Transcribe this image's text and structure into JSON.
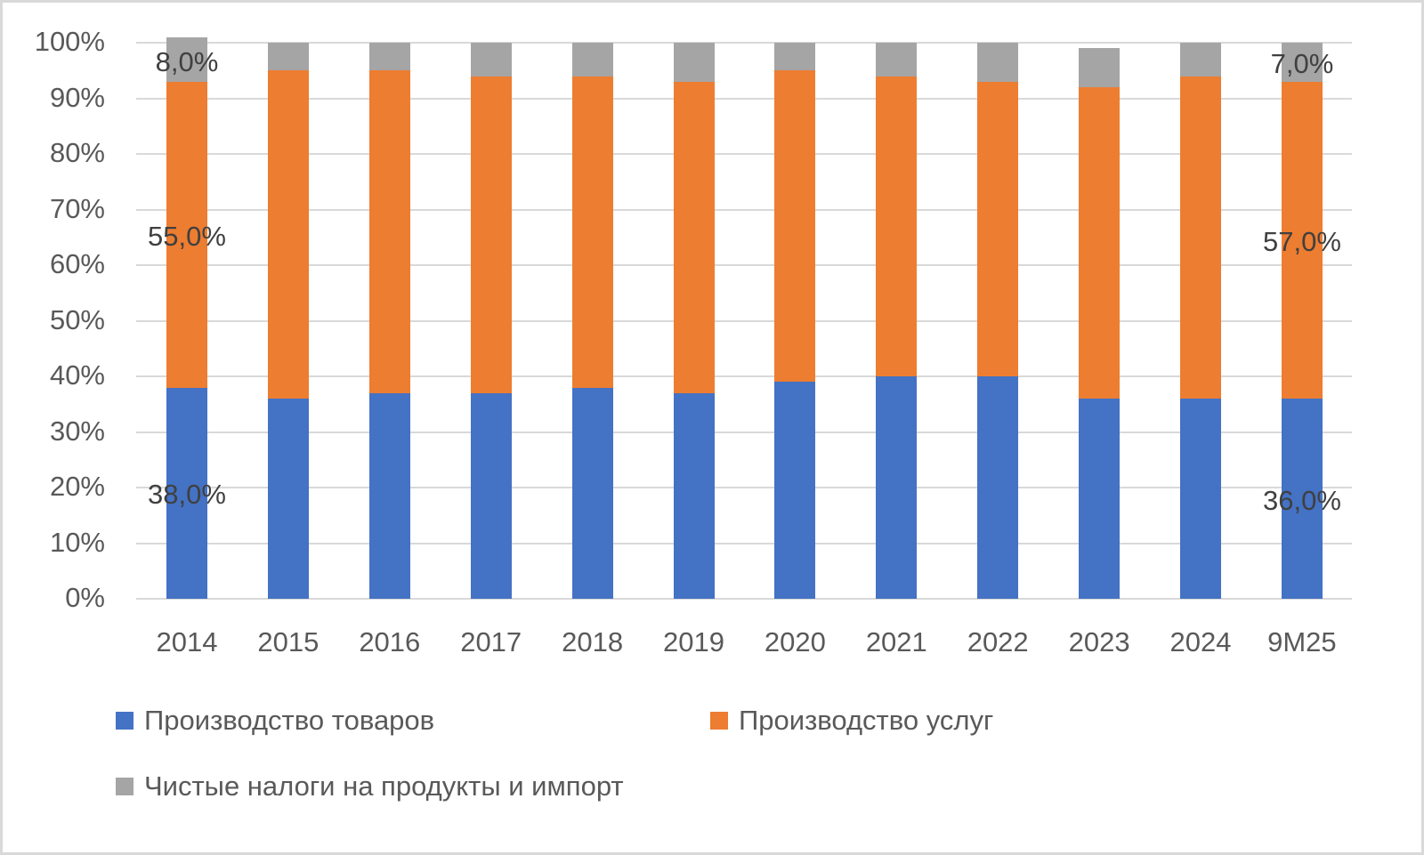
{
  "chart_data": {
    "type": "bar",
    "stacked": true,
    "title": "",
    "xlabel": "",
    "ylabel": "",
    "ylim": [
      0,
      100
    ],
    "y_ticks": [
      "0%",
      "10%",
      "20%",
      "30%",
      "40%",
      "50%",
      "60%",
      "70%",
      "80%",
      "90%",
      "100%"
    ],
    "grid": true,
    "legend_position": "bottom",
    "categories": [
      "2014",
      "2015",
      "2016",
      "2017",
      "2018",
      "2019",
      "2020",
      "2021",
      "2022",
      "2023",
      "2024",
      "9M25"
    ],
    "series": [
      {
        "name": "Производство товаров",
        "color": "#4472c4",
        "values": [
          38,
          36,
          37,
          37,
          38,
          37,
          39,
          40,
          40,
          36,
          36,
          36
        ]
      },
      {
        "name": "Производство услуг",
        "color": "#ed7d31",
        "values": [
          55,
          59,
          58,
          57,
          56,
          56,
          56,
          54,
          53,
          56,
          58,
          57
        ]
      },
      {
        "name": "Чистые налоги на продукты и импорт",
        "color": "#a5a5a5",
        "values": [
          8,
          5,
          5,
          6,
          6,
          7,
          5,
          6,
          7,
          7,
          6,
          7
        ]
      }
    ],
    "data_labels": [
      {
        "category": "2014",
        "series": "Производство товаров",
        "text": "38,0%"
      },
      {
        "category": "2014",
        "series": "Производство услуг",
        "text": "55,0%"
      },
      {
        "category": "2014",
        "series": "Чистые налоги на продукты и импорт",
        "text": "8,0%"
      },
      {
        "category": "9M25",
        "series": "Производство товаров",
        "text": "36,0%"
      },
      {
        "category": "9M25",
        "series": "Производство услуг",
        "text": "57,0%"
      },
      {
        "category": "9M25",
        "series": "Чистые налоги на продукты и импорт",
        "text": "7,0%"
      }
    ]
  },
  "labels": {
    "y": [
      "100%",
      "90%",
      "80%",
      "70%",
      "60%",
      "50%",
      "40%",
      "30%",
      "20%",
      "10%",
      "0%"
    ],
    "x": [
      "2014",
      "2015",
      "2016",
      "2017",
      "2018",
      "2019",
      "2020",
      "2021",
      "2022",
      "2023",
      "2024",
      "9M25"
    ],
    "dl_2014_goods": "38,0%",
    "dl_2014_services": "55,0%",
    "dl_2014_taxes": "8,0%",
    "dl_9m25_goods": "36,0%",
    "dl_9m25_services": "57,0%",
    "dl_9m25_taxes": "7,0%"
  },
  "legend": {
    "goods": "Производство товаров",
    "services": "Производство услуг",
    "taxes": "Чистые налоги на продукты и импорт"
  }
}
